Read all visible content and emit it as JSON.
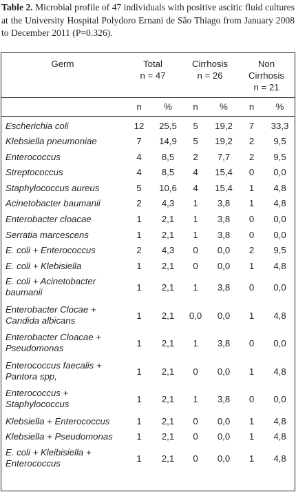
{
  "caption": {
    "label": "Table 2.",
    "text": " Microbial profile of 47 individuals with positive ascitic fluid cultures at the University Hospital Polydoro Ernani de São Thiago from January 2008 to December 2011 (P=0.326)."
  },
  "header": {
    "germ": "Germ",
    "total": "Total",
    "total_n": "n = 47",
    "cirrhosis": "Cirrhosis",
    "cirrhosis_n": "n = 26",
    "non": "Non",
    "non_cirrhosis": "Cirrhosis",
    "non_n": "n = 21",
    "sub": [
      "n",
      "%",
      "n",
      "%",
      "n",
      "%"
    ]
  },
  "rows": [
    {
      "germ": "Escherichia coli",
      "v": [
        "12",
        "25,5",
        "5",
        "19,2",
        "7",
        "33,3"
      ]
    },
    {
      "germ": "Klebsiella pneumoniae",
      "v": [
        "7",
        "14,9",
        "5",
        "19,2",
        "2",
        "9,5"
      ]
    },
    {
      "germ": "Enterococcus",
      "v": [
        "4",
        "8,5",
        "2",
        "7,7",
        "2",
        "9,5"
      ]
    },
    {
      "germ": "Streptococcus",
      "v": [
        "4",
        "8,5",
        "4",
        "15,4",
        "0",
        "0,0"
      ]
    },
    {
      "germ": "Staphylococcus aureus",
      "v": [
        "5",
        "10,6",
        "4",
        "15,4",
        "1",
        "4,8"
      ]
    },
    {
      "germ": "Acinetobacter baumanii",
      "v": [
        "2",
        "4,3",
        "1",
        "3,8",
        "1",
        "4,8"
      ]
    },
    {
      "germ": "Enterobacter cloacae",
      "v": [
        "1",
        "2,1",
        "1",
        "3,8",
        "0",
        "0,0"
      ]
    },
    {
      "germ": "Serratia marcescens",
      "v": [
        "1",
        "2,1",
        "1",
        "3,8",
        "0",
        "0,0"
      ]
    },
    {
      "germ": "E. coli + Enterococcus",
      "v": [
        "2",
        "4,3",
        "0",
        "0,0",
        "2",
        "9,5"
      ]
    },
    {
      "germ": "E. coli + Klebisiella",
      "v": [
        "1",
        "2,1",
        "0",
        "0,0",
        "1",
        "4,8"
      ]
    },
    {
      "germ": "E. coli + Acinetobacter",
      "germ2": "baumanii",
      "v": [
        "1",
        "2,1",
        "1",
        "3,8",
        "0",
        "0,0"
      ]
    },
    {
      "germ": "Enterobacter Clocae +",
      "germ2": "Candida albicans",
      "v": [
        "1",
        "2,1",
        "0,0",
        "0,0",
        "1",
        "4,8"
      ]
    },
    {
      "germ": "Enterobacter Cloacae +",
      "germ2": "Pseudomonas",
      "v": [
        "1",
        "2,1",
        "1",
        "3,8",
        "0",
        "0,0"
      ]
    },
    {
      "germ": "Enterococcus faecalis +",
      "germ2": "Pantora spp,",
      "v": [
        "1",
        "2,1",
        "0",
        "0,0",
        "1",
        "4,8"
      ]
    },
    {
      "germ": "Enterococcus +",
      "germ2": "Staphylococcus",
      "v": [
        "1",
        "2,1",
        "1",
        "3,8",
        "0",
        "0,0"
      ]
    },
    {
      "germ": "Klebsiella + Enterococcus",
      "v": [
        "1",
        "2,1",
        "0",
        "0,0",
        "1",
        "4,8"
      ]
    },
    {
      "germ": "Klebsiella + Pseudomonas",
      "v": [
        "1",
        "2,1",
        "0",
        "0,0",
        "1",
        "4,8"
      ]
    },
    {
      "germ": "E. coli + Kleibisiella +",
      "germ2": "Enterococcus",
      "v": [
        "1",
        "2,1",
        "0",
        "0,0",
        "1",
        "4,8"
      ]
    }
  ]
}
